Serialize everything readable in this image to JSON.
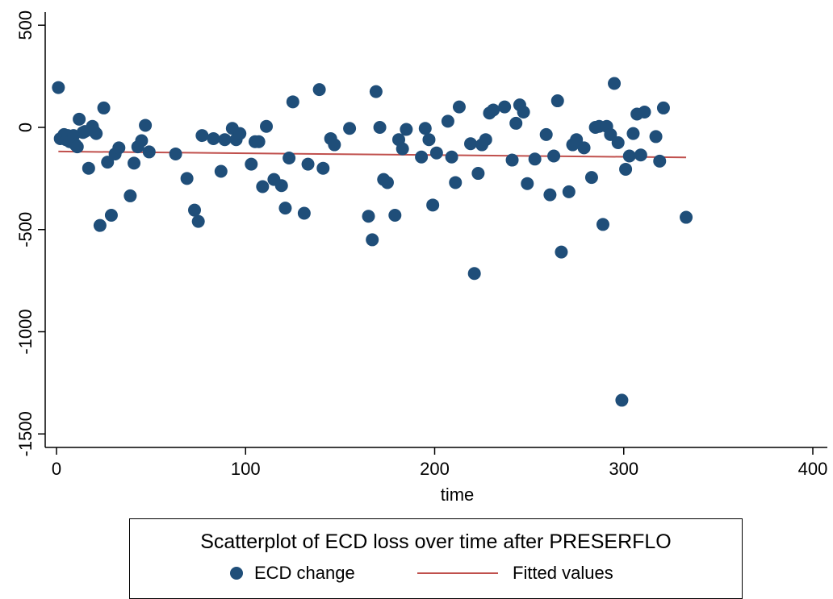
{
  "chart_data": {
    "type": "scatter",
    "title": "",
    "xlabel": "time",
    "ylabel": "",
    "xlim": [
      0,
      400
    ],
    "ylim": [
      -1500,
      500
    ],
    "xticks": [
      0,
      100,
      200,
      300,
      400
    ],
    "yticks": [
      500,
      0,
      -500,
      -1000,
      -1500
    ],
    "grid": false,
    "legend": {
      "title": "Scatterplot of ECD loss over time after PRESERFLO",
      "position": "bottom",
      "entries": [
        "ECD change",
        "Fitted values"
      ]
    },
    "series": [
      {
        "name": "ECD change",
        "type": "scatter",
        "color": "#1f4e79",
        "points": [
          [
            1,
            195
          ],
          [
            2,
            -55
          ],
          [
            4,
            -35
          ],
          [
            5,
            -60
          ],
          [
            6,
            -40
          ],
          [
            7,
            -70
          ],
          [
            9,
            -40
          ],
          [
            10,
            -85
          ],
          [
            11,
            -95
          ],
          [
            12,
            40
          ],
          [
            14,
            -25
          ],
          [
            15,
            -20
          ],
          [
            17,
            -200
          ],
          [
            19,
            5
          ],
          [
            20,
            -20
          ],
          [
            21,
            -30
          ],
          [
            23,
            -480
          ],
          [
            25,
            95
          ],
          [
            27,
            -170
          ],
          [
            29,
            -430
          ],
          [
            31,
            -130
          ],
          [
            33,
            -100
          ],
          [
            39,
            -335
          ],
          [
            41,
            -175
          ],
          [
            43,
            -95
          ],
          [
            45,
            -65
          ],
          [
            47,
            10
          ],
          [
            49,
            -120
          ],
          [
            63,
            -130
          ],
          [
            69,
            -250
          ],
          [
            73,
            -405
          ],
          [
            75,
            -460
          ],
          [
            77,
            -40
          ],
          [
            83,
            -55
          ],
          [
            87,
            -215
          ],
          [
            89,
            -60
          ],
          [
            93,
            -5
          ],
          [
            95,
            -60
          ],
          [
            97,
            -30
          ],
          [
            103,
            -180
          ],
          [
            105,
            -70
          ],
          [
            107,
            -70
          ],
          [
            109,
            -290
          ],
          [
            111,
            5
          ],
          [
            115,
            -255
          ],
          [
            119,
            -285
          ],
          [
            121,
            -395
          ],
          [
            123,
            -150
          ],
          [
            125,
            125
          ],
          [
            131,
            -420
          ],
          [
            133,
            -180
          ],
          [
            139,
            185
          ],
          [
            141,
            -200
          ],
          [
            145,
            -55
          ],
          [
            147,
            -85
          ],
          [
            155,
            -5
          ],
          [
            165,
            -435
          ],
          [
            167,
            -550
          ],
          [
            169,
            175
          ],
          [
            171,
            0
          ],
          [
            173,
            -255
          ],
          [
            175,
            -270
          ],
          [
            179,
            -430
          ],
          [
            181,
            -60
          ],
          [
            183,
            -105
          ],
          [
            185,
            -10
          ],
          [
            193,
            -145
          ],
          [
            195,
            -5
          ],
          [
            197,
            -60
          ],
          [
            199,
            -380
          ],
          [
            201,
            -125
          ],
          [
            207,
            30
          ],
          [
            209,
            -145
          ],
          [
            211,
            -270
          ],
          [
            213,
            100
          ],
          [
            219,
            -80
          ],
          [
            221,
            -715
          ],
          [
            223,
            -225
          ],
          [
            225,
            -85
          ],
          [
            227,
            -60
          ],
          [
            229,
            70
          ],
          [
            231,
            85
          ],
          [
            237,
            100
          ],
          [
            241,
            -160
          ],
          [
            243,
            20
          ],
          [
            245,
            110
          ],
          [
            247,
            75
          ],
          [
            249,
            -275
          ],
          [
            253,
            -155
          ],
          [
            259,
            -35
          ],
          [
            261,
            -330
          ],
          [
            263,
            -140
          ],
          [
            265,
            130
          ],
          [
            267,
            -610
          ],
          [
            271,
            -315
          ],
          [
            273,
            -85
          ],
          [
            275,
            -60
          ],
          [
            279,
            -100
          ],
          [
            283,
            -245
          ],
          [
            285,
            0
          ],
          [
            287,
            5
          ],
          [
            289,
            -475
          ],
          [
            291,
            5
          ],
          [
            293,
            -35
          ],
          [
            295,
            215
          ],
          [
            297,
            -75
          ],
          [
            299,
            -1335
          ],
          [
            301,
            -205
          ],
          [
            303,
            -140
          ],
          [
            305,
            -30
          ],
          [
            307,
            65
          ],
          [
            309,
            -135
          ],
          [
            311,
            75
          ],
          [
            317,
            -45
          ],
          [
            319,
            -165
          ],
          [
            321,
            95
          ],
          [
            333,
            -440
          ]
        ]
      },
      {
        "name": "Fitted values",
        "type": "line",
        "color": "#c0504d",
        "x": [
          1,
          333
        ],
        "y": [
          -118,
          -147
        ]
      }
    ]
  }
}
